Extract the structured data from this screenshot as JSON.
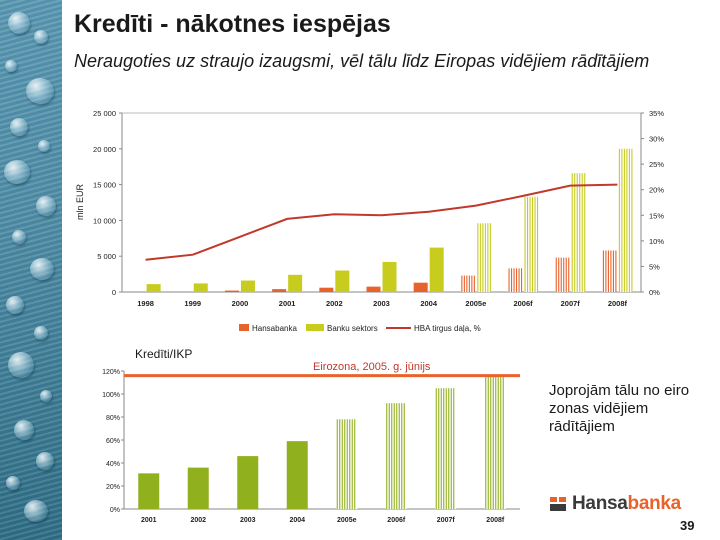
{
  "slide": {
    "title": "Kredīti - nākotnes iespējas",
    "subtitle": "Neraugoties uz straujo izaugsmi, vēl tālu līdz Eiropas vidējiem rādītājiem",
    "note": "Joprojām tālu no eiro zonas vidējiem rādītājiem",
    "page_number": "39",
    "logo": {
      "part1": "Hansa",
      "part2": "banka",
      "icon": "hansabanka-logo-icon"
    }
  },
  "colors": {
    "hansabanka": "#e8622c",
    "banku_sektors": "#c8cc1e",
    "line": "#c0392b",
    "ratio_bars": "#90b01e",
    "euro_line": "#e8622c"
  },
  "chart_data": [
    {
      "type": "bar",
      "title": "",
      "xlabel": "",
      "ylabel": "mln EUR",
      "y2label": "",
      "categories": [
        "1998",
        "1999",
        "2000",
        "2001",
        "2002",
        "2003",
        "2004",
        "2005e",
        "2006f",
        "2007f",
        "2008f"
      ],
      "ylim": [
        0,
        25000
      ],
      "yticks": [
        "25 000",
        "20 000",
        "15 000",
        "10 000",
        "5 000",
        "0"
      ],
      "y2lim": [
        0,
        35
      ],
      "y2ticks": [
        "35%",
        "30%",
        "25%",
        "20%",
        "15%",
        "10%",
        "5%",
        "0%"
      ],
      "series": [
        {
          "name": "Hansabanka",
          "kind": "bar",
          "axis": "left",
          "values": [
            0,
            0,
            200,
            400,
            600,
            750,
            1300,
            2300,
            3300,
            4800,
            5800
          ]
        },
        {
          "name": "Banku sektors",
          "kind": "bar",
          "axis": "left",
          "values": [
            1100,
            1200,
            1600,
            2400,
            3000,
            4200,
            6200,
            9600,
            13300,
            16600,
            20000
          ]
        },
        {
          "name": "HBA tirgus daļa, %",
          "kind": "line",
          "axis": "right",
          "values": [
            6.3,
            7.3,
            10.8,
            14.3,
            15.2,
            15.0,
            15.7,
            16.9,
            18.8,
            20.8,
            21.0
          ]
        }
      ],
      "legend": [
        "Hansabanka",
        "Banku sektors",
        "HBA tirgus daļa, %"
      ],
      "legend_position": "bottom"
    },
    {
      "type": "bar",
      "title": "Kredīti/IKP",
      "annotation": "Eirozona, 2005. g. jūnijs",
      "categories": [
        "2001",
        "2002",
        "2003",
        "2004",
        "2005e",
        "2006f",
        "2007f",
        "2008f"
      ],
      "values": [
        31,
        36,
        46,
        59,
        78,
        92,
        105,
        117
      ],
      "forecast_from_index": 4,
      "reference_line": 116,
      "ylim": [
        0,
        120
      ],
      "yticks": [
        "120%",
        "100%",
        "80%",
        "60%",
        "40%",
        "20%",
        "0%"
      ]
    }
  ]
}
